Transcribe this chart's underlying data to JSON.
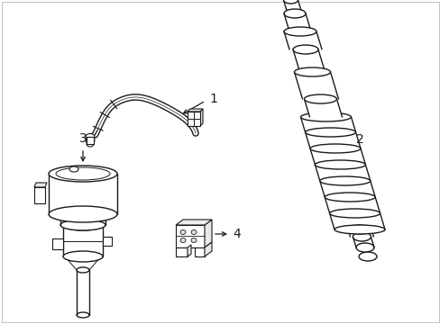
{
  "background_color": "#ffffff",
  "line_color": "#1a1a1a",
  "line_width": 1.0,
  "fill_color": "#ffffff",
  "label_fontsize": 10,
  "border_color": "#cccccc"
}
